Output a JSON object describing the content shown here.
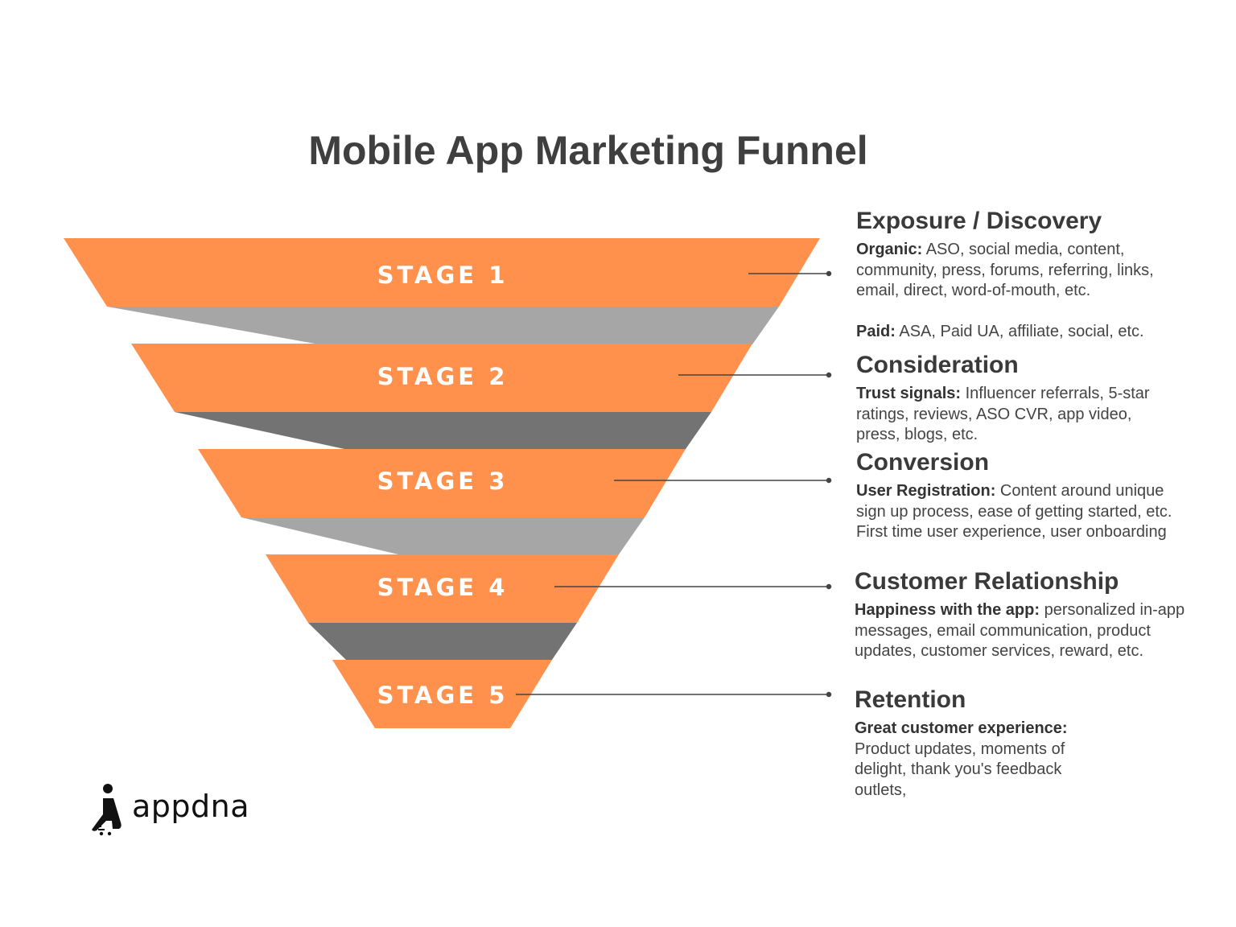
{
  "title": "Mobile App Marketing Funnel",
  "colors": {
    "stage_fill": "#FF914D",
    "connector_light": "#A6A6A6",
    "connector_dark": "#737373",
    "leader_line": "#444444"
  },
  "stages": [
    {
      "label": "STAGE 1",
      "heading": "Exposure / Discovery",
      "lines": [
        {
          "bold": "Organic:",
          "text": " ASO, social media, content, community, press, forums, referring, links, email, direct, word-of-mouth, etc."
        },
        {
          "bold": "Paid:",
          "text": " ASA, Paid UA, affiliate, social, etc."
        }
      ]
    },
    {
      "label": "STAGE 2",
      "heading": "Consideration",
      "lines": [
        {
          "bold": "Trust signals:",
          "text": " Influencer referrals, 5-star ratings, reviews, ASO CVR, app video, press, blogs, etc."
        }
      ]
    },
    {
      "label": "STAGE 3",
      "heading": "Conversion",
      "lines": [
        {
          "bold": "User Registration:",
          "text": " Content around unique sign up process, ease of getting started, etc. First time user experience, user onboarding"
        }
      ]
    },
    {
      "label": "STAGE 4",
      "heading": "Customer Relationship",
      "lines": [
        {
          "bold": "Happiness with the app:",
          "text": " personalized in-app messages, email communication, product updates, customer services, reward, etc."
        }
      ]
    },
    {
      "label": "STAGE 5",
      "heading": "Retention",
      "lines": [
        {
          "bold": "Great customer experience:",
          "text": " Product updates, moments of delight, thank you's feedback outlets,"
        }
      ]
    }
  ],
  "logo": {
    "text": "appdna",
    "icon": "appdna-person-icon"
  }
}
